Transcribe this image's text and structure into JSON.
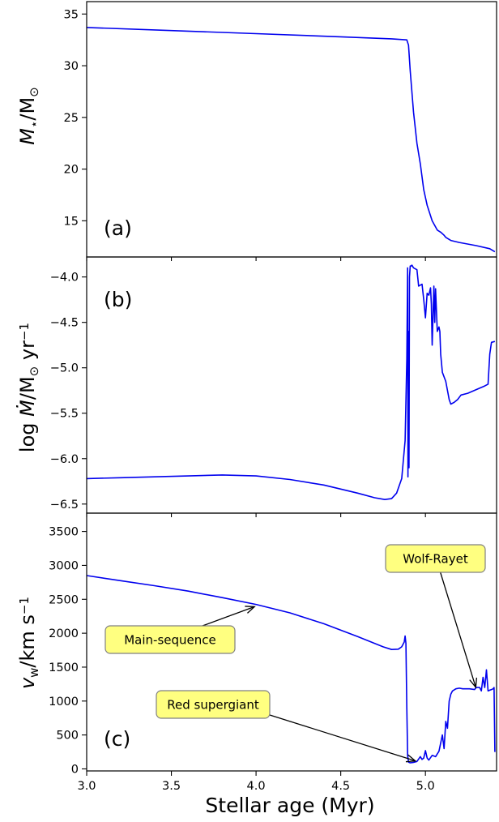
{
  "figure": {
    "xlabel": "Stellar age (Myr)"
  },
  "chart_data": [
    {
      "type": "line",
      "panel_label": "(a)",
      "ylabel_parts": {
        "main": "M",
        "sub": "⋆",
        "unit": "/M",
        "unit_sub": "⊙"
      },
      "xlim": [
        3.0,
        5.42
      ],
      "ylim": [
        11.5,
        36.2
      ],
      "xticks": [
        3.0,
        3.5,
        4.0,
        4.5,
        5.0
      ],
      "yticks": [
        15,
        20,
        25,
        30,
        35
      ],
      "ytick_labels": [
        "15",
        "20",
        "25",
        "30",
        "35"
      ],
      "series": [
        {
          "color": "#0000ee",
          "x": [
            3.0,
            3.5,
            4.0,
            4.5,
            4.8,
            4.89,
            4.9,
            4.91,
            4.93,
            4.95,
            4.97,
            4.99,
            5.01,
            5.04,
            5.07,
            5.09,
            5.11,
            5.12,
            5.15,
            5.2,
            5.3,
            5.38,
            5.41
          ],
          "y": [
            33.7,
            33.4,
            33.1,
            32.8,
            32.6,
            32.5,
            32.0,
            29.5,
            25.5,
            22.5,
            20.5,
            18.0,
            16.5,
            15.0,
            14.1,
            13.9,
            13.6,
            13.4,
            13.1,
            12.9,
            12.6,
            12.3,
            12.0
          ]
        }
      ]
    },
    {
      "type": "line",
      "panel_label": "(b)",
      "ylabel_parts": {
        "pre": "log ",
        "main": "Ṁ",
        "unit": "/M",
        "unit_sub": "⊙",
        "post": " yr",
        "post_sup": "−1"
      },
      "xlim": [
        3.0,
        5.42
      ],
      "ylim": [
        -6.6,
        -3.78
      ],
      "xticks": [
        3.0,
        3.5,
        4.0,
        4.5,
        5.0
      ],
      "yticks": [
        -6.5,
        -6.0,
        -5.5,
        -5.0,
        -4.5,
        -4.0
      ],
      "ytick_labels": [
        "−6.5",
        "−6.0",
        "−5.5",
        "−5.0",
        "−4.5",
        "−4.0"
      ],
      "series": [
        {
          "color": "#0000ee",
          "x": [
            3.0,
            3.2,
            3.4,
            3.6,
            3.8,
            4.0,
            4.2,
            4.4,
            4.6,
            4.7,
            4.76,
            4.8,
            4.83,
            4.86,
            4.88,
            4.89,
            4.895,
            4.897,
            4.9,
            4.903,
            4.906,
            4.91,
            4.915,
            4.92,
            4.93,
            4.95,
            4.96,
            4.98,
            4.99,
            5.0,
            5.01,
            5.02,
            5.03,
            5.035,
            5.04,
            5.05,
            5.055,
            5.06,
            5.07,
            5.08,
            5.085,
            5.09,
            5.1,
            5.12,
            5.14,
            5.15,
            5.17,
            5.19,
            5.21,
            5.25,
            5.3,
            5.35,
            5.37,
            5.38,
            5.39,
            5.41
          ],
          "y": [
            -6.22,
            -6.21,
            -6.2,
            -6.19,
            -6.18,
            -6.19,
            -6.23,
            -6.29,
            -6.38,
            -6.43,
            -6.45,
            -6.44,
            -6.38,
            -6.22,
            -5.8,
            -4.9,
            -3.9,
            -6.2,
            -4.6,
            -6.1,
            -4.0,
            -3.88,
            -3.88,
            -3.87,
            -3.9,
            -3.92,
            -4.1,
            -4.08,
            -4.25,
            -4.45,
            -4.18,
            -4.2,
            -4.12,
            -4.3,
            -4.75,
            -4.1,
            -4.5,
            -4.13,
            -4.6,
            -4.55,
            -4.6,
            -4.85,
            -5.05,
            -5.15,
            -5.35,
            -5.4,
            -5.38,
            -5.35,
            -5.3,
            -5.28,
            -5.24,
            -5.2,
            -5.18,
            -4.85,
            -4.72,
            -4.71
          ]
        }
      ]
    },
    {
      "type": "line",
      "panel_label": "(c)",
      "ylabel_parts": {
        "main": "v",
        "sub": "w",
        "unit": "/km s",
        "unit_sup": "−1"
      },
      "xlim": [
        3.0,
        5.42
      ],
      "ylim": [
        -30,
        3770
      ],
      "xticks": [
        3.0,
        3.5,
        4.0,
        4.5,
        5.0
      ],
      "xtick_labels": [
        "3.0",
        "3.5",
        "4.0",
        "4.5",
        "5.0"
      ],
      "yticks": [
        0,
        500,
        1000,
        1500,
        2000,
        2500,
        3000,
        3500
      ],
      "ytick_labels": [
        "0",
        "500",
        "1000",
        "1500",
        "2000",
        "2500",
        "3000",
        "3500"
      ],
      "annotations": [
        {
          "text": "Main-sequence",
          "arrow_to": [
            4.0,
            2400
          ]
        },
        {
          "text": "Red supergiant",
          "arrow_to": [
            4.95,
            110
          ]
        },
        {
          "text": "Wolf-Rayet",
          "arrow_to": [
            5.3,
            1180
          ]
        }
      ],
      "series": [
        {
          "color": "#0000ee",
          "x": [
            3.0,
            3.2,
            3.4,
            3.6,
            3.8,
            4.0,
            4.2,
            4.4,
            4.6,
            4.75,
            4.8,
            4.84,
            4.86,
            4.875,
            4.88,
            4.885,
            4.89,
            4.895,
            4.9,
            4.91,
            4.93,
            4.95,
            4.97,
            4.98,
            4.99,
            5.0,
            5.01,
            5.02,
            5.04,
            5.06,
            5.08,
            5.1,
            5.11,
            5.12,
            5.13,
            5.14,
            5.15,
            5.16,
            5.18,
            5.2,
            5.22,
            5.26,
            5.29,
            5.3,
            5.32,
            5.33,
            5.34,
            5.35,
            5.36,
            5.37,
            5.38,
            5.39,
            5.4,
            5.405,
            5.41
          ],
          "y": [
            2850,
            2775,
            2700,
            2620,
            2525,
            2425,
            2300,
            2140,
            1950,
            1800,
            1760,
            1765,
            1800,
            1870,
            1960,
            1850,
            900,
            200,
            100,
            90,
            95,
            110,
            180,
            140,
            160,
            270,
            160,
            130,
            200,
            180,
            260,
            500,
            300,
            700,
            600,
            1000,
            1100,
            1150,
            1180,
            1190,
            1180,
            1180,
            1170,
            1200,
            1200,
            1150,
            1350,
            1200,
            1460,
            1150,
            1160,
            1170,
            1180,
            1200,
            250
          ]
        }
      ]
    }
  ]
}
